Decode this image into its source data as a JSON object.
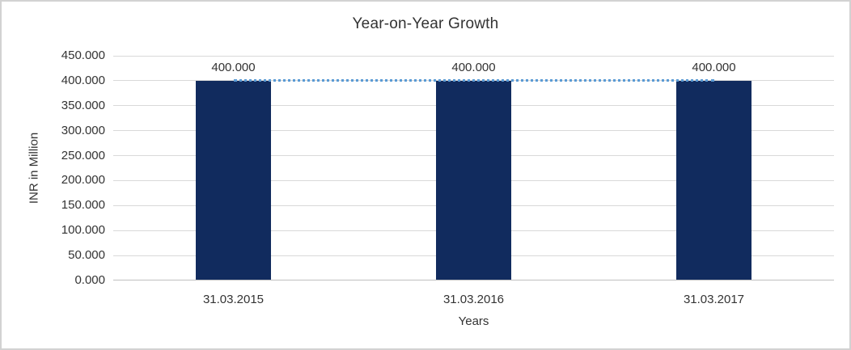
{
  "chart_data": {
    "type": "bar",
    "title": "Year-on-Year Growth",
    "categories": [
      "31.03.2015",
      "31.03.2016",
      "31.03.2017"
    ],
    "series": [
      {
        "name": "bar-series",
        "type": "bar",
        "values": [
          400,
          400,
          400
        ],
        "data_labels": [
          "400.000",
          "400.000",
          "400.000"
        ],
        "color": "#112b5e"
      },
      {
        "name": "trend-line-series",
        "type": "line",
        "values": [
          400,
          400,
          400
        ],
        "color": "#5b9bd5",
        "dash": "dotted"
      }
    ],
    "xlabel": "Years",
    "ylabel": "INR in Million",
    "ylim": [
      0,
      450
    ],
    "ytick_step": 50,
    "ytick_labels": [
      "0.000",
      "50.000",
      "100.000",
      "150.000",
      "200.000",
      "250.000",
      "300.000",
      "350.000",
      "400.000",
      "450.000"
    ],
    "grid": true,
    "legend": false,
    "colors": {
      "gridline": "#d9d9d9",
      "axis_line": "#bfbfbf",
      "text": "#333333",
      "frame_border": "#d2d2d2",
      "background": "#ffffff"
    }
  }
}
